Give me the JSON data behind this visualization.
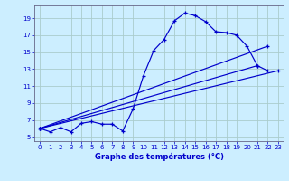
{
  "xlabel": "Graphe des températures (°C)",
  "bg_color": "#cceeff",
  "grid_color": "#aacccc",
  "line_color": "#0000cc",
  "xlim": [
    -0.5,
    23.5
  ],
  "ylim": [
    4.5,
    20.5
  ],
  "xticks": [
    0,
    1,
    2,
    3,
    4,
    5,
    6,
    7,
    8,
    9,
    10,
    11,
    12,
    13,
    14,
    15,
    16,
    17,
    18,
    19,
    20,
    21,
    22,
    23
  ],
  "yticks": [
    5,
    7,
    9,
    11,
    13,
    15,
    17,
    19
  ],
  "series": {
    "main": [
      [
        0,
        6.0
      ],
      [
        1,
        5.6
      ],
      [
        2,
        6.1
      ],
      [
        3,
        5.6
      ],
      [
        4,
        6.6
      ],
      [
        5,
        6.8
      ],
      [
        6,
        6.5
      ],
      [
        7,
        6.5
      ],
      [
        8,
        5.7
      ],
      [
        9,
        8.3
      ],
      [
        10,
        12.2
      ],
      [
        11,
        15.2
      ],
      [
        12,
        16.5
      ],
      [
        13,
        18.7
      ],
      [
        14,
        19.6
      ],
      [
        15,
        19.3
      ],
      [
        16,
        18.6
      ],
      [
        17,
        17.4
      ],
      [
        18,
        17.3
      ],
      [
        19,
        17.0
      ],
      [
        20,
        15.7
      ],
      [
        21,
        13.4
      ],
      [
        22,
        12.8
      ]
    ],
    "line2": [
      [
        0,
        6.0
      ],
      [
        23,
        12.8
      ]
    ],
    "line3": [
      [
        0,
        6.0
      ],
      [
        22,
        15.7
      ]
    ],
    "line4": [
      [
        0,
        6.0
      ],
      [
        21,
        13.4
      ]
    ]
  }
}
